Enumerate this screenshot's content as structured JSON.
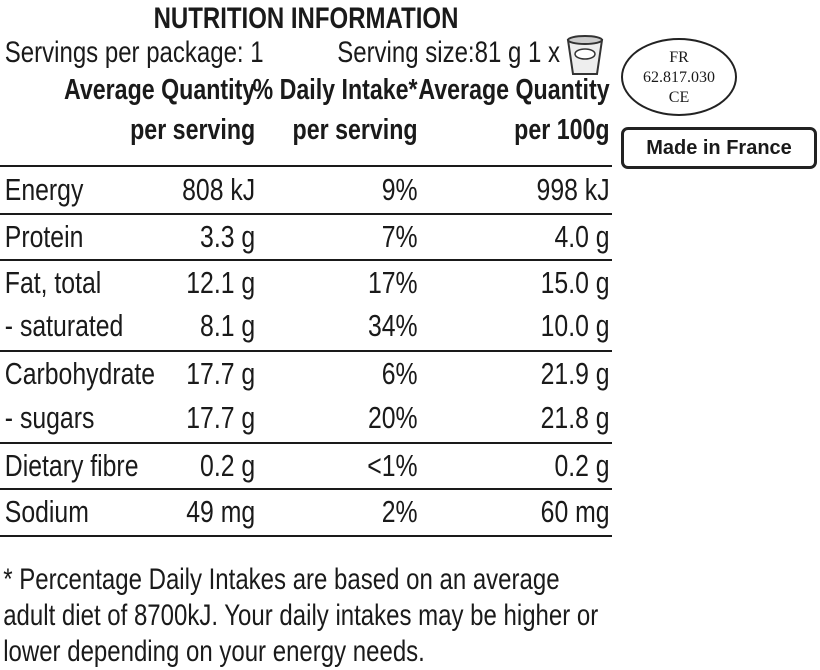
{
  "title": "NUTRITION INFORMATION",
  "servings_per_package": "Servings per package: 1",
  "serving_size": "Serving size:81 g 1 x",
  "headers": {
    "col1_line1": "Average Quantity",
    "col1_line2": "per serving",
    "col2_line1": "% Daily Intake*",
    "col2_line2": "per serving",
    "col3_line1": "Average Quantity",
    "col3_line2": "per 100g"
  },
  "rows": [
    {
      "name": "Energy",
      "per_serving": "808 kJ",
      "daily": "9%",
      "per_100g": "998 kJ"
    },
    {
      "name": "Protein",
      "per_serving": "3.3 g",
      "daily": "7%",
      "per_100g": "4.0 g"
    },
    {
      "name": "Fat, total",
      "per_serving": "12.1 g",
      "daily": "17%",
      "per_100g": "15.0 g"
    },
    {
      "name": "- saturated",
      "per_serving": "8.1 g",
      "daily": "34%",
      "per_100g": "10.0 g"
    },
    {
      "name": "Carbohydrate",
      "per_serving": "17.7 g",
      "daily": "6%",
      "per_100g": "21.9 g"
    },
    {
      "name": "- sugars",
      "per_serving": "17.7 g",
      "daily": "20%",
      "per_100g": "21.8 g"
    },
    {
      "name": "Dietary fibre",
      "per_serving": "0.2 g",
      "daily": "<1%",
      "per_100g": "0.2 g"
    },
    {
      "name": "Sodium",
      "per_serving": "49 mg",
      "daily": "2%",
      "per_100g": "60 mg"
    }
  ],
  "footnote": "* Percentage Daily Intakes are based on an average adult diet of 8700kJ. Your daily intakes may be higher or lower depending on your energy needs.",
  "health_mark": {
    "line1": "FR",
    "line2": "62.817.030",
    "line3": "CE"
  },
  "origin": "Made in France"
}
